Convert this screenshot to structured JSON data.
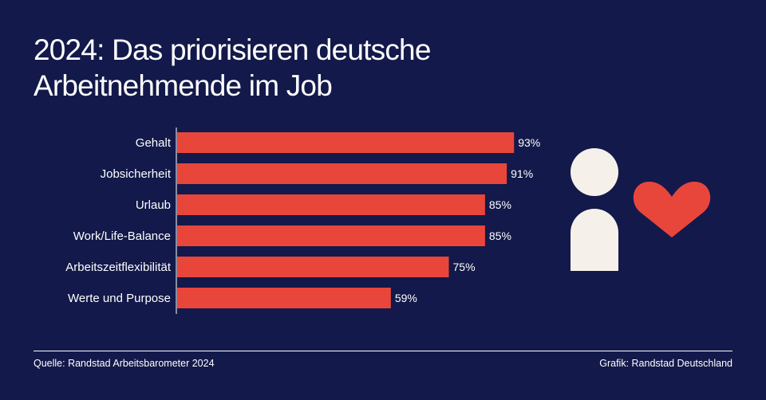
{
  "header": {
    "title_line1": "2024: Das priorisieren deutsche",
    "title_line2": "Arbeitnehmende im Job"
  },
  "chart_data": {
    "type": "bar",
    "orientation": "horizontal",
    "categories": [
      "Gehalt",
      "Jobsicherheit",
      "Urlaub",
      "Work/Life-Balance",
      "Arbeitszeitflexibilität",
      "Werte und Purpose"
    ],
    "values": [
      93,
      91,
      85,
      85,
      75,
      59
    ],
    "value_labels": [
      "93%",
      "91%",
      "85%",
      "85%",
      "75%",
      "59%"
    ],
    "unit": "%",
    "xlim": [
      0,
      100
    ],
    "title": "2024: Das priorisieren deutsche Arbeitnehmende im Job",
    "xlabel": "",
    "ylabel": "",
    "grid": false
  },
  "footer": {
    "source": "Quelle: Randstad Arbeitsbarometer 2024",
    "credit": "Grafik: Randstad Deutschland"
  },
  "colors": {
    "background": "#13194a",
    "bar": "#e8463b",
    "text": "#ffffff",
    "person": "#f5f1ea",
    "heart": "#e8463b"
  },
  "icons": {
    "person": "person-icon",
    "heart": "heart-icon"
  }
}
